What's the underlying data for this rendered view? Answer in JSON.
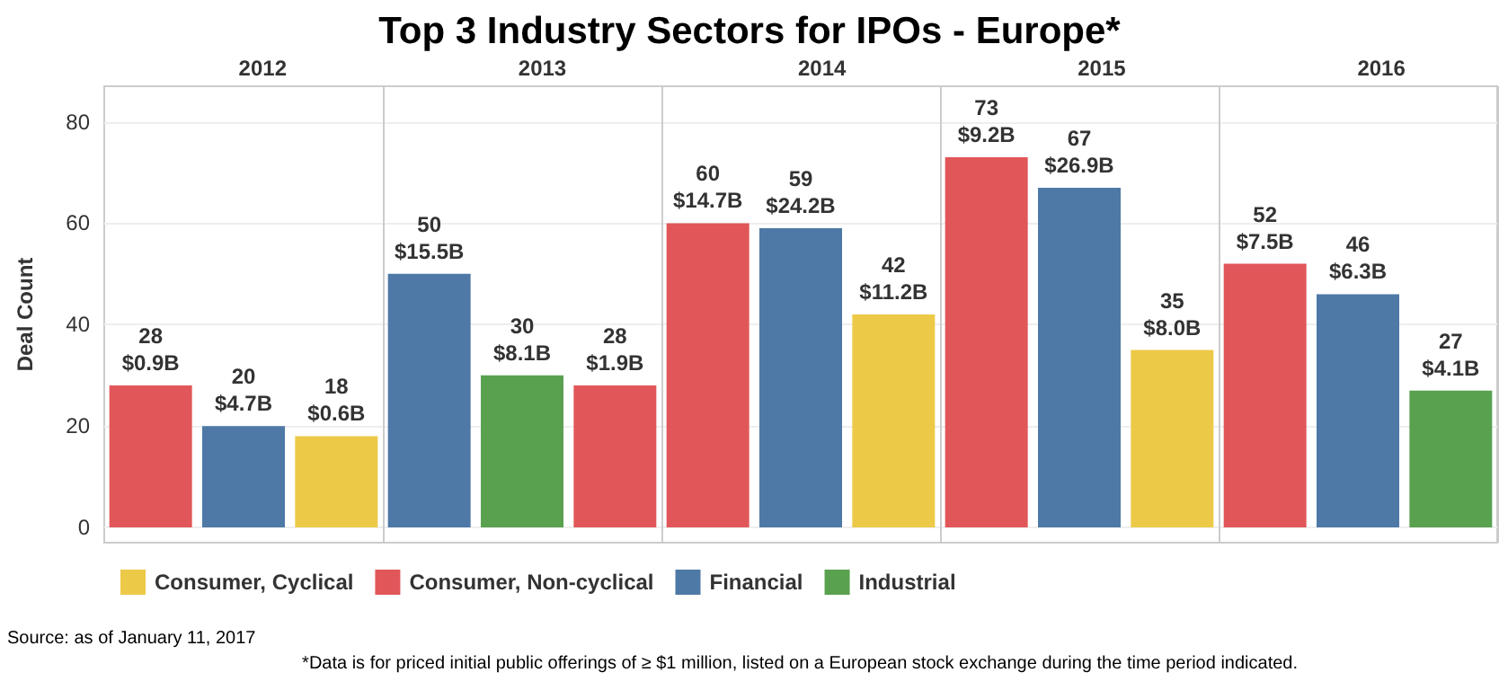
{
  "chart_data": {
    "type": "bar",
    "title": "Top 3 Industry Sectors for IPOs - Europe*",
    "ylabel": "Deal Count",
    "stacked": true,
    "categories": [
      null,
      null,
      null,
      null,
      null,
      null,
      null,
      null,
      null,
      null,
      null,
      null,
      null,
      null,
      null
    ],
    "ylim": [
      -3,
      87
    ],
    "yticks": [
      0,
      20,
      40,
      60,
      80
    ],
    "grid": "y",
    "tick_labels": "y",
    "legend": "bottom",
    "annotations": [
      "2012",
      "2013",
      "2014",
      "2015",
      "2016",
      "Source: as of January 11, 2017",
      "*Data is for priced initial public offerings of ≥ $1 million, listed on a European stock exchange during the time period indicated."
    ],
    "series": [
      {
        "name": "Consumer, Cyclical",
        "color": "#edc948",
        "values": [
          null,
          null,
          18,
          null,
          null,
          null,
          null,
          null,
          42,
          null,
          null,
          35,
          null,
          null,
          null
        ],
        "value_labels": [
          null,
          null,
          "18\n$0.6B",
          null,
          null,
          null,
          null,
          null,
          "42\n$11.2B",
          null,
          null,
          "35\n$8.0B",
          null,
          null,
          null
        ]
      },
      {
        "name": "Consumer, Non-cyclical",
        "color": "#e15759",
        "values": [
          28,
          null,
          null,
          null,
          null,
          28,
          60,
          null,
          null,
          73,
          null,
          null,
          52,
          null,
          null
        ],
        "value_labels": [
          "28\n$0.9B",
          null,
          null,
          null,
          null,
          "28\n$1.9B",
          "60\n$14.7B",
          null,
          null,
          "73\n$9.2B",
          null,
          null,
          "52\n$7.5B",
          null,
          null
        ]
      },
      {
        "name": "Financial",
        "color": "#4e79a7",
        "values": [
          null,
          20,
          null,
          50,
          null,
          null,
          null,
          59,
          null,
          null,
          67,
          null,
          null,
          46,
          null
        ],
        "value_labels": [
          null,
          "20\n$4.7B",
          null,
          "50\n$15.5B",
          null,
          null,
          null,
          "59\n$24.2B",
          null,
          null,
          "67\n$26.9B",
          null,
          null,
          "46\n$6.3B",
          null
        ]
      },
      {
        "name": "Industrial",
        "color": "#59a14f",
        "values": [
          null,
          null,
          null,
          null,
          30,
          null,
          null,
          null,
          null,
          null,
          null,
          null,
          null,
          null,
          27
        ],
        "value_labels": [
          null,
          null,
          null,
          null,
          "30\n$8.1B",
          null,
          null,
          null,
          null,
          null,
          null,
          null,
          null,
          null,
          "27\n$4.1B"
        ]
      }
    ]
  }
}
